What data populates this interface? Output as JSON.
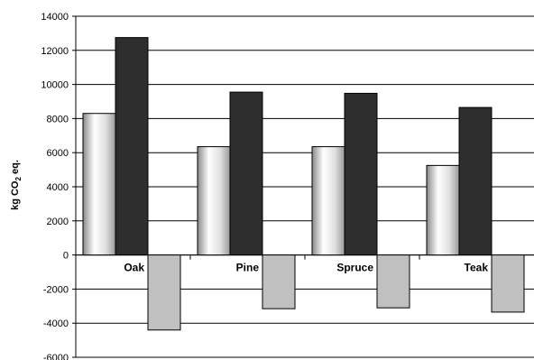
{
  "chart_data": {
    "type": "bar",
    "categories": [
      "Oak",
      "Pine",
      "Spruce",
      "Teak"
    ],
    "series": [
      {
        "values": [
          8300,
          6350,
          6350,
          5250
        ],
        "color_style": "white-gray-gradient"
      },
      {
        "values": [
          12750,
          9550,
          9480,
          8650
        ],
        "color": "#2e2e2e"
      },
      {
        "values": [
          -4400,
          -3150,
          -3100,
          -3350
        ],
        "color": "#c0c0c0"
      }
    ],
    "ylabel_main": "kg CO",
    "ylabel_sub": "2",
    "ylabel_tail": " eq.",
    "ylim": [
      -6000,
      14000
    ],
    "yticks": [
      14000,
      12000,
      10000,
      8000,
      6000,
      4000,
      2000,
      0,
      -2000,
      -4000,
      -6000
    ],
    "ytick_labels": [
      "14000",
      "12000",
      "10000",
      "8000",
      "6000",
      "4000",
      "2000",
      "0",
      "-2000",
      "-4000",
      "-6000"
    ],
    "grid": true,
    "legend": "none"
  }
}
